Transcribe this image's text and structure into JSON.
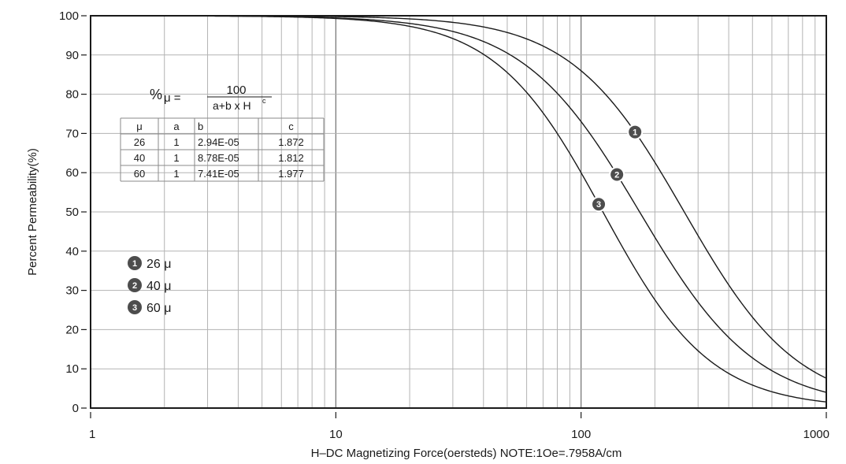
{
  "chart_data": {
    "type": "line",
    "title": "",
    "xlabel": "H–DC Magnetizing Force(oersteds) NOTE:1Oe=.7958A/cm",
    "ylabel": "Percent Permeability(%)",
    "x_scale": "log",
    "xlim": [
      1,
      1000
    ],
    "ylim": [
      0,
      100
    ],
    "grid": true,
    "x_ticks": [
      "1",
      "10",
      "100",
      "1000"
    ],
    "y_ticks": [
      "0",
      "10",
      "20",
      "30",
      "40",
      "50",
      "60",
      "70",
      "80",
      "90",
      "100"
    ],
    "formula": {
      "lhs": "%",
      "mu": "μ =",
      "numerator": "100",
      "denominator": "a+b x H",
      "superscript": "c"
    },
    "coefficients_table": {
      "headers": [
        "μ",
        "a",
        "b",
        "c"
      ],
      "rows": [
        [
          "26",
          "1",
          "2.94E-05",
          "1.872"
        ],
        [
          "40",
          "1",
          "8.78E-05",
          "1.812"
        ],
        [
          "60",
          "1",
          "7.41E-05",
          "1.977"
        ]
      ]
    },
    "series": [
      {
        "label": "1",
        "name": "26 μ",
        "a": 1,
        "b": 2.94e-05,
        "c": 1.872
      },
      {
        "label": "2",
        "name": "40 μ",
        "a": 1,
        "b": 8.78e-05,
        "c": 1.812
      },
      {
        "label": "3",
        "name": "60 μ",
        "a": 1,
        "b": 7.41e-05,
        "c": 1.977
      }
    ],
    "curve_label_x": [
      166,
      140,
      118
    ],
    "legend": [
      {
        "badge": "1",
        "text": "26 μ"
      },
      {
        "badge": "2",
        "text": "40 μ"
      },
      {
        "badge": "3",
        "text": "60 μ"
      }
    ],
    "colors": {
      "curve": "#1a1a1a",
      "grid": "#b3b3b3",
      "badge": "#4d4d4d"
    }
  }
}
